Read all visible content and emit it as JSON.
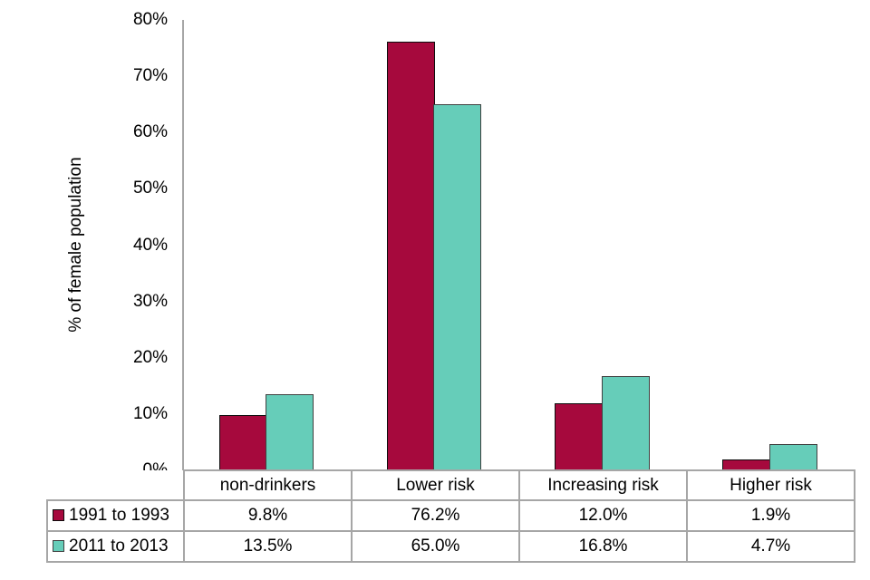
{
  "chart_data": {
    "type": "bar",
    "title": "",
    "xlabel": "",
    "ylabel": "% of female population",
    "categories": [
      "non-drinkers",
      "Lower risk",
      "Increasing risk",
      "Higher risk"
    ],
    "series": [
      {
        "name": "1991 to 1993",
        "values": [
          9.8,
          76.2,
          12.0,
          1.9
        ],
        "value_labels": [
          "9.8%",
          "76.2%",
          "12.0%",
          "1.9%"
        ],
        "color": "#A6093D",
        "border_color": "#0d0d0d"
      },
      {
        "name": "2011 to 2013",
        "values": [
          13.5,
          65.0,
          16.8,
          4.7
        ],
        "value_labels": [
          "13.5%",
          "65.0%",
          "16.8%",
          "4.7%"
        ],
        "color": "#66CDB9",
        "border_color": "#404040"
      }
    ],
    "ylim": [
      0,
      80
    ],
    "yticks": [
      "0%",
      "10%",
      "20%",
      "30%",
      "40%",
      "50%",
      "60%",
      "70%",
      "80%"
    ],
    "grid": false,
    "legend_position": "table-rows-left",
    "axis_color": "#A6A6A6",
    "table_border_color": "#A6A6A6"
  }
}
